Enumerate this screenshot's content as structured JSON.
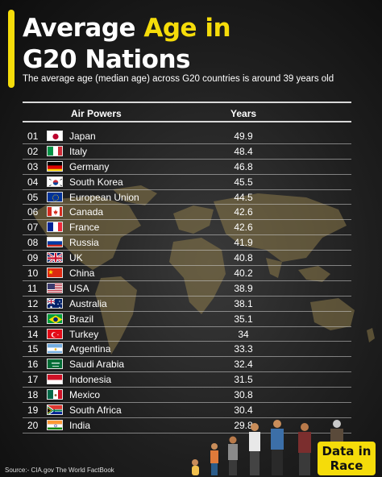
{
  "header": {
    "title_part1": "Average ",
    "title_part2": "Age in",
    "title_line2": "G20 Nations",
    "subtitle": "The average age (median age) across G20 countries is around 39 years old",
    "accent_color": "#f5dc0a"
  },
  "table": {
    "col_country": "Air Powers",
    "col_years": "Years",
    "rows": [
      {
        "rank": "01",
        "country": "Japan",
        "years": "49.9",
        "flag": "japan-flag"
      },
      {
        "rank": "02",
        "country": "Italy",
        "years": "48.4",
        "flag": "italy-flag"
      },
      {
        "rank": "03",
        "country": "Germany",
        "years": "46.8",
        "flag": "germany-flag"
      },
      {
        "rank": "04",
        "country": "South Korea",
        "years": "45.5",
        "flag": "south-korea-flag"
      },
      {
        "rank": "05",
        "country": "European Union",
        "years": "44.5",
        "flag": "eu-flag"
      },
      {
        "rank": "06",
        "country": "Canada",
        "years": "42.6",
        "flag": "canada-flag"
      },
      {
        "rank": "07",
        "country": "France",
        "years": "42.6",
        "flag": "france-flag"
      },
      {
        "rank": "08",
        "country": "Russia",
        "years": "41.9",
        "flag": "russia-flag"
      },
      {
        "rank": "09",
        "country": "UK",
        "years": "40.8",
        "flag": "uk-flag"
      },
      {
        "rank": "10",
        "country": "China",
        "years": "40.2",
        "flag": "china-flag"
      },
      {
        "rank": "11",
        "country": "USA",
        "years": "38.9",
        "flag": "usa-flag"
      },
      {
        "rank": "12",
        "country": "Australia",
        "years": "38.1",
        "flag": "australia-flag"
      },
      {
        "rank": "13",
        "country": "Brazil",
        "years": "35.1",
        "flag": "brazil-flag"
      },
      {
        "rank": "14",
        "country": "Turkey",
        "years": "34",
        "flag": "turkey-flag"
      },
      {
        "rank": "15",
        "country": "Argentina",
        "years": "33.3",
        "flag": "argentina-flag"
      },
      {
        "rank": "16",
        "country": "Saudi Arabia",
        "years": "32.4",
        "flag": "saudi-arabia-flag"
      },
      {
        "rank": "17",
        "country": "Indonesia",
        "years": "31.5",
        "flag": "indonesia-flag"
      },
      {
        "rank": "18",
        "country": "Mexico",
        "years": "30.8",
        "flag": "mexico-flag"
      },
      {
        "rank": "19",
        "country": "South Africa",
        "years": "30.4",
        "flag": "south-africa-flag"
      },
      {
        "rank": "20",
        "country": "India",
        "years": "29.8",
        "flag": "india-flag"
      }
    ]
  },
  "footer": {
    "source": "Source:- CIA.gov The World FactBook",
    "logo_line1": "Data in",
    "logo_line2": "Race"
  }
}
